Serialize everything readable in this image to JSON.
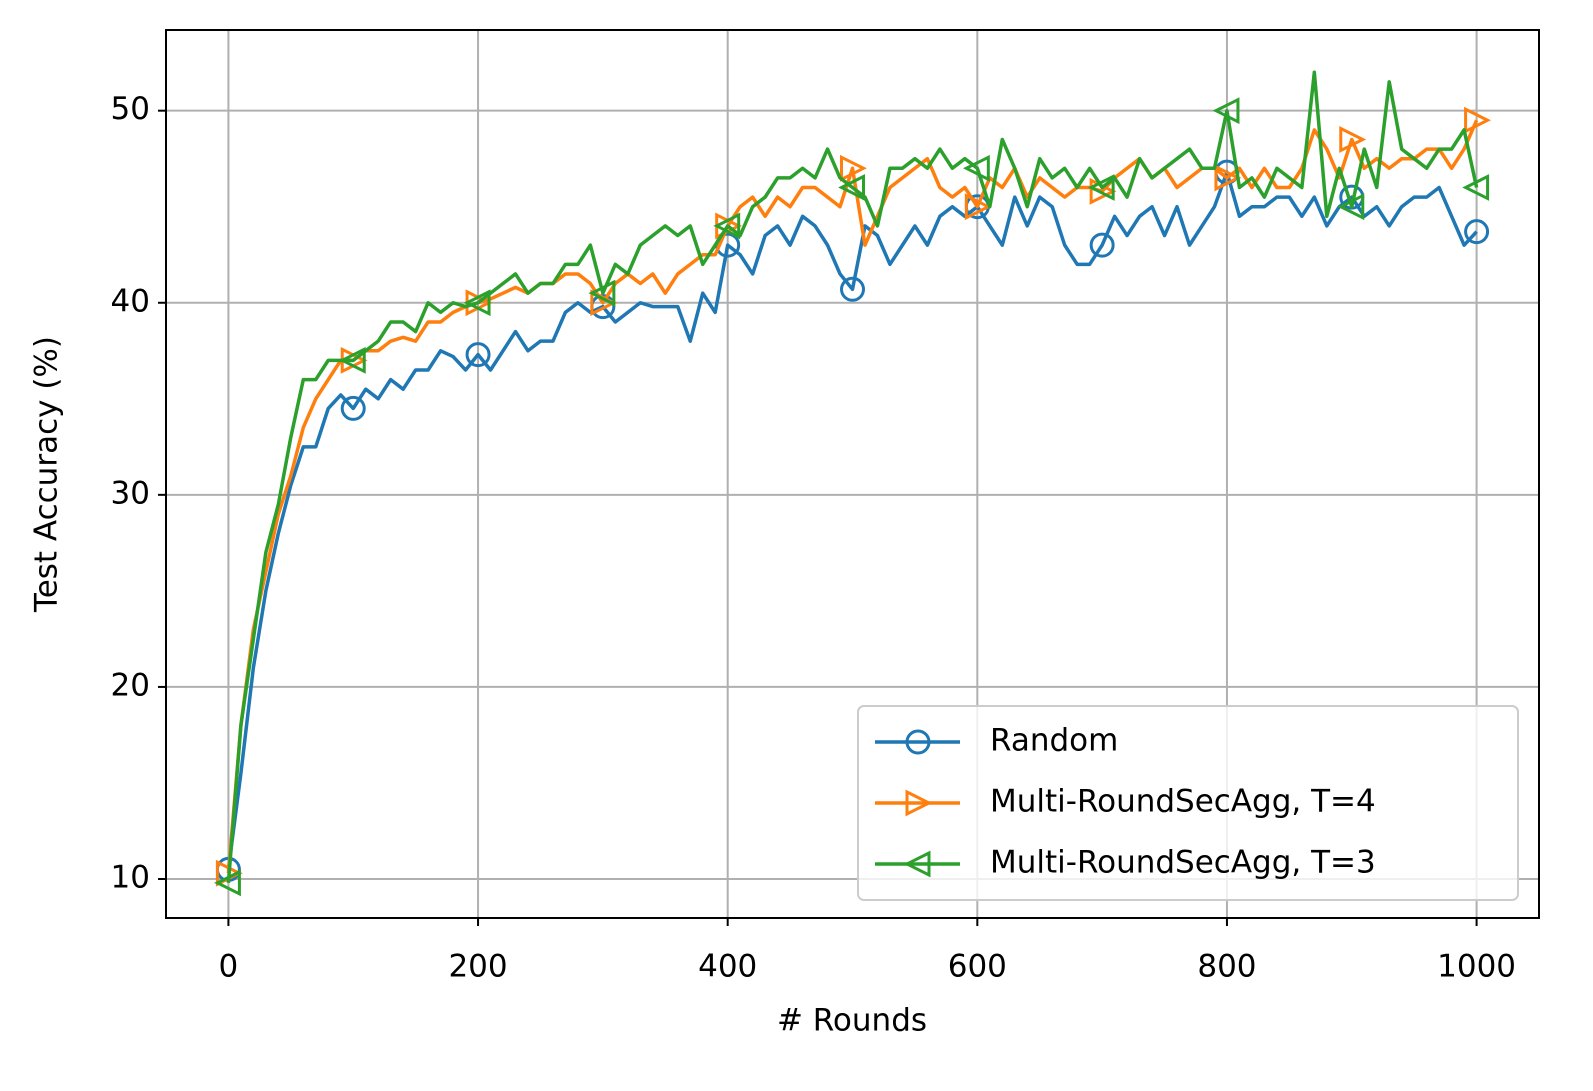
{
  "chart_data": {
    "type": "line",
    "xlabel": "# Rounds",
    "ylabel": "Test Accuracy (%)",
    "x": [
      0,
      10,
      20,
      30,
      40,
      50,
      60,
      70,
      80,
      90,
      100,
      110,
      120,
      130,
      140,
      150,
      160,
      170,
      180,
      190,
      200,
      210,
      220,
      230,
      240,
      250,
      260,
      270,
      280,
      290,
      300,
      310,
      320,
      330,
      340,
      350,
      360,
      370,
      380,
      390,
      400,
      410,
      420,
      430,
      440,
      450,
      460,
      470,
      480,
      490,
      500,
      510,
      520,
      530,
      540,
      550,
      560,
      570,
      580,
      590,
      600,
      610,
      620,
      630,
      640,
      650,
      660,
      670,
      680,
      690,
      700,
      710,
      720,
      730,
      740,
      750,
      760,
      770,
      780,
      790,
      800,
      810,
      820,
      830,
      840,
      850,
      860,
      870,
      880,
      890,
      900,
      910,
      920,
      930,
      940,
      950,
      960,
      970,
      980,
      990,
      1000
    ],
    "series": [
      {
        "name": "Random",
        "color": "#1f77b4",
        "marker": "o",
        "values": [
          10.5,
          15.5,
          21,
          25,
          28,
          30.5,
          32.5,
          32.5,
          34.5,
          35.2,
          34.5,
          35.5,
          35,
          36,
          35.5,
          36.5,
          36.5,
          37.5,
          37.2,
          36.5,
          37.3,
          36.5,
          37.5,
          38.5,
          37.5,
          38,
          38,
          39.5,
          40,
          39.5,
          39.8,
          39,
          39.5,
          40,
          39.8,
          39.8,
          39.8,
          38,
          40.5,
          39.5,
          43,
          42.5,
          41.5,
          43.5,
          44,
          43,
          44.5,
          44,
          43,
          41.5,
          40.7,
          44,
          43.5,
          42,
          43,
          44,
          43,
          44.5,
          45,
          44.5,
          45,
          44,
          43,
          45.5,
          44,
          45.5,
          45,
          43,
          42,
          42,
          43,
          44.5,
          43.5,
          44.5,
          45,
          43.5,
          45,
          43,
          44,
          45,
          46.8,
          44.5,
          45,
          45,
          45.5,
          45.5,
          44.5,
          45.5,
          44,
          45,
          45.5,
          44.5,
          45,
          44,
          45,
          45.5,
          45.5,
          46,
          44.5,
          43,
          43.7
        ]
      },
      {
        "name": "Multi-RoundSecAgg, T=4",
        "color": "#ff7f0e",
        "marker": ">",
        "values": [
          10.3,
          18,
          23,
          26,
          29,
          31,
          33.5,
          35,
          36,
          37,
          37,
          37.5,
          37.5,
          38,
          38.2,
          38,
          39,
          39,
          39.5,
          39.8,
          40,
          40.2,
          40.5,
          40.8,
          40.5,
          41,
          41,
          41.5,
          41.5,
          41,
          40,
          41,
          41.5,
          41,
          41.5,
          40.5,
          41.5,
          42,
          42.5,
          42.5,
          44,
          45,
          45.5,
          44.5,
          45.5,
          45,
          46,
          46,
          45.5,
          45,
          47,
          43,
          44.5,
          46,
          46.5,
          47,
          47.5,
          46,
          45.5,
          46,
          45,
          46.5,
          46,
          47,
          45.5,
          46.5,
          46,
          45.5,
          46,
          46,
          45.8,
          46.5,
          47,
          47.5,
          46.5,
          47,
          46,
          46.5,
          47,
          47,
          46.5,
          47,
          46,
          47,
          46,
          46,
          47,
          49,
          48,
          46.5,
          48.5,
          47,
          47.5,
          47,
          47.5,
          47.5,
          48,
          48,
          47,
          48,
          49.5
        ]
      },
      {
        "name": "Multi-RoundSecAgg, T=3",
        "color": "#2ca02c",
        "marker": "<",
        "values": [
          9.8,
          18,
          22.5,
          27,
          29.5,
          33,
          36,
          36,
          37,
          37,
          37,
          37.5,
          38,
          39,
          39,
          38.5,
          40,
          39.5,
          40,
          39.8,
          40,
          40.5,
          41,
          41.5,
          40.5,
          41,
          41,
          42,
          42,
          43,
          40.5,
          42,
          41.5,
          43,
          43.5,
          44,
          43.5,
          44,
          42,
          43,
          44,
          43.5,
          45,
          45.5,
          46.5,
          46.5,
          47,
          46.5,
          48,
          46.5,
          46,
          45.5,
          44,
          47,
          47,
          47.5,
          47,
          48,
          47,
          47.5,
          47,
          45,
          48.5,
          47,
          45,
          47.5,
          46.5,
          47,
          46,
          47,
          46,
          46.5,
          45.5,
          47.5,
          46.5,
          47,
          47.5,
          48,
          47,
          47,
          50,
          46,
          46.5,
          45.5,
          47,
          46.5,
          46,
          52,
          44.5,
          47,
          45,
          48,
          46,
          51.5,
          48,
          47.5,
          47,
          48,
          48,
          49,
          46
        ]
      }
    ],
    "markevery": 10,
    "xlim": [
      -50,
      1050
    ],
    "ylim": [
      7.97,
      54.2
    ],
    "xticks": [
      0,
      200,
      400,
      600,
      800,
      1000
    ],
    "yticks": [
      10,
      20,
      30,
      40,
      50
    ],
    "grid": true,
    "legend": "lower right"
  }
}
